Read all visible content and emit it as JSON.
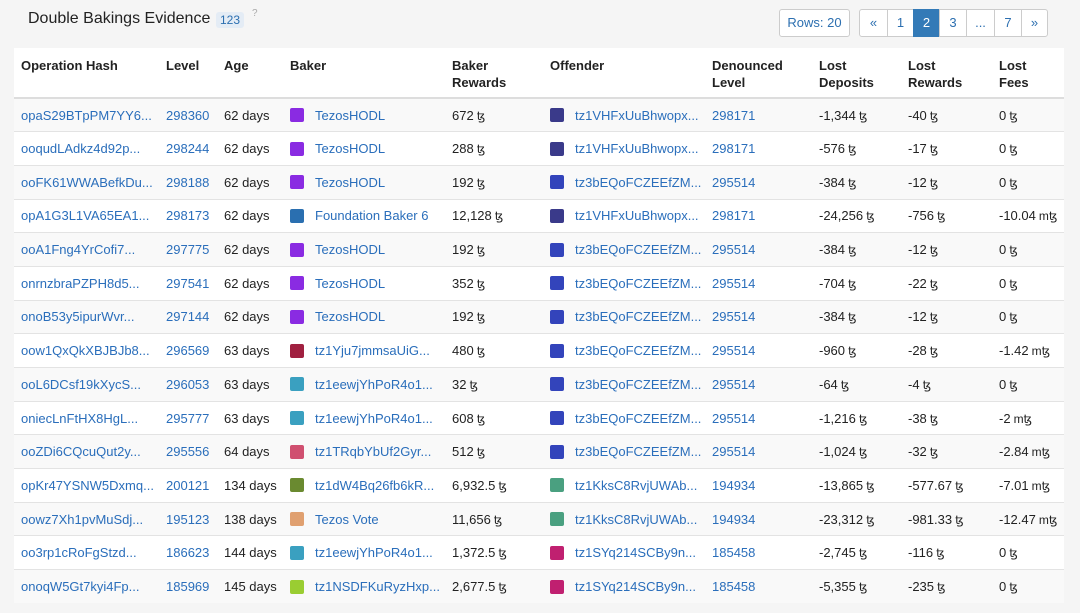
{
  "header": {
    "title": "Double Bakings Evidence",
    "count": "123",
    "help": "?",
    "rows_label": "Rows: 20",
    "pages": [
      "«",
      "1",
      "2",
      "3",
      "...",
      "7",
      "»"
    ],
    "active_page": "2"
  },
  "columns": [
    "Operation Hash",
    "Level",
    "Age",
    "Baker",
    "Baker\nRewards",
    "Offender",
    "Denounced\nLevel",
    "Lost\nDeposits",
    "Lost\nRewards",
    "Lost\nFees"
  ],
  "currency_symbol": "ꜩ",
  "rows": [
    {
      "hash": "opaS29BTpPM7YY6...",
      "level": "298360",
      "age": "62 days",
      "baker": "TezosHODL",
      "baker_icon": "#8a2be2",
      "rewards": "672",
      "offender": "tz1VHFxUuBhwopx...",
      "offender_icon": "#3a3a8a",
      "den_level": "298171",
      "lost_dep": "-1,344",
      "lost_rew": "-40",
      "lost_fees": "0",
      "fees_unit": "ꜩ"
    },
    {
      "hash": "ooqudLAdkz4d92p...",
      "level": "298244",
      "age": "62 days",
      "baker": "TezosHODL",
      "baker_icon": "#8a2be2",
      "rewards": "288",
      "offender": "tz1VHFxUuBhwopx...",
      "offender_icon": "#3a3a8a",
      "den_level": "298171",
      "lost_dep": "-576",
      "lost_rew": "-17",
      "lost_fees": "0",
      "fees_unit": "ꜩ"
    },
    {
      "hash": "ooFK61WWABefkDu...",
      "level": "298188",
      "age": "62 days",
      "baker": "TezosHODL",
      "baker_icon": "#8a2be2",
      "rewards": "192",
      "offender": "tz3bEQoFCZEEfZM...",
      "offender_icon": "#3344bb",
      "den_level": "295514",
      "lost_dep": "-384",
      "lost_rew": "-12",
      "lost_fees": "0",
      "fees_unit": "ꜩ"
    },
    {
      "hash": "opA1G3L1VA65EA1...",
      "level": "298173",
      "age": "62 days",
      "baker": "Foundation Baker 6",
      "baker_icon": "#2a6fb0",
      "rewards": "12,128",
      "offender": "tz1VHFxUuBhwopx...",
      "offender_icon": "#3a3a8a",
      "den_level": "298171",
      "lost_dep": "-24,256",
      "lost_rew": "-756",
      "lost_fees": "-10.04",
      "fees_unit": "mꜩ"
    },
    {
      "hash": "ooA1Fng4YrCofi7...",
      "level": "297775",
      "age": "62 days",
      "baker": "TezosHODL",
      "baker_icon": "#8a2be2",
      "rewards": "192",
      "offender": "tz3bEQoFCZEEfZM...",
      "offender_icon": "#3344bb",
      "den_level": "295514",
      "lost_dep": "-384",
      "lost_rew": "-12",
      "lost_fees": "0",
      "fees_unit": "ꜩ"
    },
    {
      "hash": "onrnzbraPZPH8d5...",
      "level": "297541",
      "age": "62 days",
      "baker": "TezosHODL",
      "baker_icon": "#8a2be2",
      "rewards": "352",
      "offender": "tz3bEQoFCZEEfZM...",
      "offender_icon": "#3344bb",
      "den_level": "295514",
      "lost_dep": "-704",
      "lost_rew": "-22",
      "lost_fees": "0",
      "fees_unit": "ꜩ"
    },
    {
      "hash": "onoB53y5ipurWvr...",
      "level": "297144",
      "age": "62 days",
      "baker": "TezosHODL",
      "baker_icon": "#8a2be2",
      "rewards": "192",
      "offender": "tz3bEQoFCZEEfZM...",
      "offender_icon": "#3344bb",
      "den_level": "295514",
      "lost_dep": "-384",
      "lost_rew": "-12",
      "lost_fees": "0",
      "fees_unit": "ꜩ"
    },
    {
      "hash": "oow1QxQkXBJBJb8...",
      "level": "296569",
      "age": "63 days",
      "baker": "tz1Yju7jmmsaUiG...",
      "baker_icon": "#a02040",
      "rewards": "480",
      "offender": "tz3bEQoFCZEEfZM...",
      "offender_icon": "#3344bb",
      "den_level": "295514",
      "lost_dep": "-960",
      "lost_rew": "-28",
      "lost_fees": "-1.42",
      "fees_unit": "mꜩ"
    },
    {
      "hash": "ooL6DCsf19kXycS...",
      "level": "296053",
      "age": "63 days",
      "baker": "tz1eewjYhPoR4o1...",
      "baker_icon": "#3aa0c0",
      "rewards": "32",
      "offender": "tz3bEQoFCZEEfZM...",
      "offender_icon": "#3344bb",
      "den_level": "295514",
      "lost_dep": "-64",
      "lost_rew": "-4",
      "lost_fees": "0",
      "fees_unit": "ꜩ"
    },
    {
      "hash": "oniecLnFtHX8HgL...",
      "level": "295777",
      "age": "63 days",
      "baker": "tz1eewjYhPoR4o1...",
      "baker_icon": "#3aa0c0",
      "rewards": "608",
      "offender": "tz3bEQoFCZEEfZM...",
      "offender_icon": "#3344bb",
      "den_level": "295514",
      "lost_dep": "-1,216",
      "lost_rew": "-38",
      "lost_fees": "-2",
      "fees_unit": "mꜩ"
    },
    {
      "hash": "ooZDi6CQcuQut2y...",
      "level": "295556",
      "age": "64 days",
      "baker": "tz1TRqbYbUf2Gyr...",
      "baker_icon": "#d05070",
      "rewards": "512",
      "offender": "tz3bEQoFCZEEfZM...",
      "offender_icon": "#3344bb",
      "den_level": "295514",
      "lost_dep": "-1,024",
      "lost_rew": "-32",
      "lost_fees": "-2.84",
      "fees_unit": "mꜩ"
    },
    {
      "hash": "opKr47YSNW5Dxmq...",
      "level": "200121",
      "age": "134 days",
      "baker": "tz1dW4Bq26fb6kR...",
      "baker_icon": "#6a8a30",
      "rewards": "6,932.5",
      "offender": "tz1KksC8RvjUWAb...",
      "offender_icon": "#4aa080",
      "den_level": "194934",
      "lost_dep": "-13,865",
      "lost_rew": "-577.67",
      "lost_fees": "-7.01",
      "fees_unit": "mꜩ"
    },
    {
      "hash": "oowz7Xh1pvMuSdj...",
      "level": "195123",
      "age": "138 days",
      "baker": "Tezos Vote",
      "baker_icon": "#e0a070",
      "rewards": "11,656",
      "offender": "tz1KksC8RvjUWAb...",
      "offender_icon": "#4aa080",
      "den_level": "194934",
      "lost_dep": "-23,312",
      "lost_rew": "-981.33",
      "lost_fees": "-12.47",
      "fees_unit": "mꜩ"
    },
    {
      "hash": "oo3rp1cRoFgStzd...",
      "level": "186623",
      "age": "144 days",
      "baker": "tz1eewjYhPoR4o1...",
      "baker_icon": "#3aa0c0",
      "rewards": "1,372.5",
      "offender": "tz1SYq214SCBy9n...",
      "offender_icon": "#c02070",
      "den_level": "185458",
      "lost_dep": "-2,745",
      "lost_rew": "-116",
      "lost_fees": "0",
      "fees_unit": "ꜩ"
    },
    {
      "hash": "onoqW5Gt7kyi4Fp...",
      "level": "185969",
      "age": "145 days",
      "baker": "tz1NSDFKuRyzHxp...",
      "baker_icon": "#9acd32",
      "rewards": "2,677.5",
      "offender": "tz1SYq214SCBy9n...",
      "offender_icon": "#c02070",
      "den_level": "185458",
      "lost_dep": "-5,355",
      "lost_rew": "-235",
      "lost_fees": "0",
      "fees_unit": "ꜩ"
    }
  ]
}
